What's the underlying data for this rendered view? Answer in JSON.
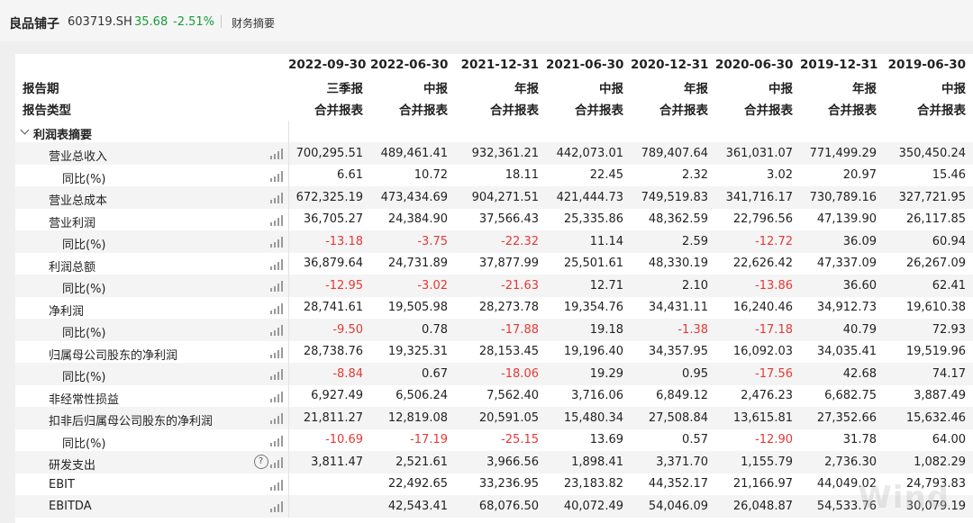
{
  "header": {
    "company": "良品铺子",
    "code": "603719.SH",
    "price": "35.68",
    "change_pct": "-2.51%",
    "tab": "财务摘要",
    "price_color": "#1a9b3c"
  },
  "table": {
    "period_label": "报告期",
    "report_period_label": "报告期",
    "report_type_label": "报告类型",
    "dates": [
      "2022-09-30",
      "2022-06-30",
      "2021-12-31",
      "2021-06-30",
      "2020-12-31",
      "2020-06-30",
      "2019-12-31",
      "2019-06-30"
    ],
    "periods": [
      "三季报",
      "中报",
      "年报",
      "中报",
      "年报",
      "中报",
      "年报",
      "中报"
    ],
    "types": [
      "合并报表",
      "合并报表",
      "合并报表",
      "合并报表",
      "合并报表",
      "合并报表",
      "合并报表",
      "合并报表"
    ],
    "section": "利润表摘要",
    "rows": [
      {
        "label": "营业总收入",
        "indent": 1,
        "values": [
          "700,295.51",
          "489,461.41",
          "932,361.21",
          "442,073.01",
          "789,407.64",
          "361,031.07",
          "771,499.29",
          "350,450.24"
        ]
      },
      {
        "label": "同比(%)",
        "indent": 2,
        "values": [
          "6.61",
          "10.72",
          "18.11",
          "22.45",
          "2.32",
          "3.02",
          "20.97",
          "15.46"
        ]
      },
      {
        "label": "营业总成本",
        "indent": 1,
        "values": [
          "672,325.19",
          "473,434.69",
          "904,271.51",
          "421,444.73",
          "749,519.83",
          "341,716.17",
          "730,789.16",
          "327,721.95"
        ]
      },
      {
        "label": "营业利润",
        "indent": 1,
        "values": [
          "36,705.27",
          "24,384.90",
          "37,566.43",
          "25,335.86",
          "48,362.59",
          "22,796.56",
          "47,139.90",
          "26,117.85"
        ]
      },
      {
        "label": "同比(%)",
        "indent": 2,
        "values": [
          "-13.18",
          "-3.75",
          "-22.32",
          "11.14",
          "2.59",
          "-12.72",
          "36.09",
          "60.94"
        ]
      },
      {
        "label": "利润总额",
        "indent": 1,
        "values": [
          "36,879.64",
          "24,731.89",
          "37,877.99",
          "25,501.61",
          "48,330.19",
          "22,626.42",
          "47,337.09",
          "26,267.09"
        ]
      },
      {
        "label": "同比(%)",
        "indent": 2,
        "values": [
          "-12.95",
          "-3.02",
          "-21.63",
          "12.71",
          "2.10",
          "-13.86",
          "36.60",
          "62.41"
        ]
      },
      {
        "label": "净利润",
        "indent": 1,
        "values": [
          "28,741.61",
          "19,505.98",
          "28,273.78",
          "19,354.76",
          "34,431.11",
          "16,240.46",
          "34,912.73",
          "19,610.38"
        ]
      },
      {
        "label": "同比(%)",
        "indent": 2,
        "values": [
          "-9.50",
          "0.78",
          "-17.88",
          "19.18",
          "-1.38",
          "-17.18",
          "40.79",
          "72.93"
        ]
      },
      {
        "label": "归属母公司股东的净利润",
        "indent": 1,
        "values": [
          "28,738.76",
          "19,325.31",
          "28,153.45",
          "19,196.40",
          "34,357.95",
          "16,092.03",
          "34,035.41",
          "19,519.96"
        ]
      },
      {
        "label": "同比(%)",
        "indent": 2,
        "values": [
          "-8.84",
          "0.67",
          "-18.06",
          "19.29",
          "0.95",
          "-17.56",
          "42.68",
          "74.17"
        ]
      },
      {
        "label": "非经常性损益",
        "indent": 1,
        "values": [
          "6,927.49",
          "6,506.24",
          "7,562.40",
          "3,716.06",
          "6,849.12",
          "2,476.23",
          "6,682.75",
          "3,887.49"
        ]
      },
      {
        "label": "扣非后归属母公司股东的净利润",
        "indent": 1,
        "values": [
          "21,811.27",
          "12,819.08",
          "20,591.05",
          "15,480.34",
          "27,508.84",
          "13,615.81",
          "27,352.66",
          "15,632.46"
        ]
      },
      {
        "label": "同比(%)",
        "indent": 2,
        "values": [
          "-10.69",
          "-17.19",
          "-25.15",
          "13.69",
          "0.57",
          "-12.90",
          "31.78",
          "64.00"
        ]
      },
      {
        "label": "研发支出",
        "indent": 1,
        "help": true,
        "values": [
          "3,811.47",
          "2,521.61",
          "3,966.56",
          "1,898.41",
          "3,371.70",
          "1,155.79",
          "2,736.30",
          "1,082.29"
        ]
      },
      {
        "label": "EBIT",
        "indent": 1,
        "values": [
          "",
          "22,492.65",
          "33,236.95",
          "23,183.82",
          "44,352.17",
          "21,166.97",
          "44,049.02",
          "24,793.83"
        ]
      },
      {
        "label": "EBITDA",
        "indent": 1,
        "values": [
          "",
          "42,543.41",
          "68,076.50",
          "40,072.49",
          "54,046.09",
          "26,048.87",
          "54,533.76",
          "30,079.19"
        ]
      }
    ],
    "negative_color": "#e53935"
  },
  "icons": {
    "chart": "bar-chart-icon",
    "help": "question-circle-icon",
    "collapse": "chevron-down-icon"
  },
  "watermark": "Wind"
}
